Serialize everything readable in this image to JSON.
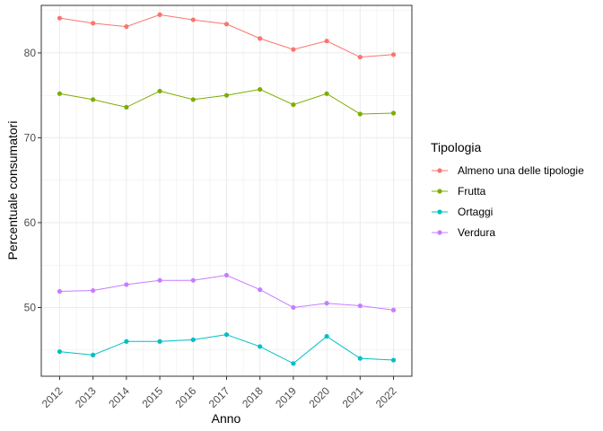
{
  "chart_data": {
    "type": "line",
    "x": [
      "2012",
      "2013",
      "2014",
      "2015",
      "2016",
      "2017",
      "2018",
      "2019",
      "2020",
      "2021",
      "2022"
    ],
    "series": [
      {
        "name": "Almeno una delle tipologie",
        "color": "#F8766D",
        "values": [
          84.1,
          83.5,
          83.1,
          84.5,
          83.9,
          83.4,
          81.7,
          80.4,
          81.4,
          79.5,
          79.8
        ]
      },
      {
        "name": "Frutta",
        "color": "#7CAE00",
        "values": [
          75.2,
          74.5,
          73.6,
          75.5,
          74.5,
          75.0,
          75.7,
          73.9,
          75.2,
          72.8,
          72.9
        ]
      },
      {
        "name": "Ortaggi",
        "color": "#00BFC4",
        "values": [
          44.8,
          44.4,
          46.0,
          46.0,
          46.2,
          46.8,
          45.4,
          43.4,
          46.6,
          44.0,
          43.8
        ]
      },
      {
        "name": "Verdura",
        "color": "#C77CFF",
        "values": [
          51.9,
          52.0,
          52.7,
          53.2,
          53.2,
          53.8,
          52.1,
          50.0,
          50.5,
          50.2,
          49.7
        ]
      }
    ],
    "xlabel": "Anno",
    "ylabel": "Percentuale consumatori",
    "yticks": [
      "50",
      "60",
      "70",
      "80"
    ],
    "ylim": [
      41.9,
      85.6
    ],
    "grid": true,
    "legend": {
      "title": "Tipologia",
      "position": "right"
    }
  }
}
